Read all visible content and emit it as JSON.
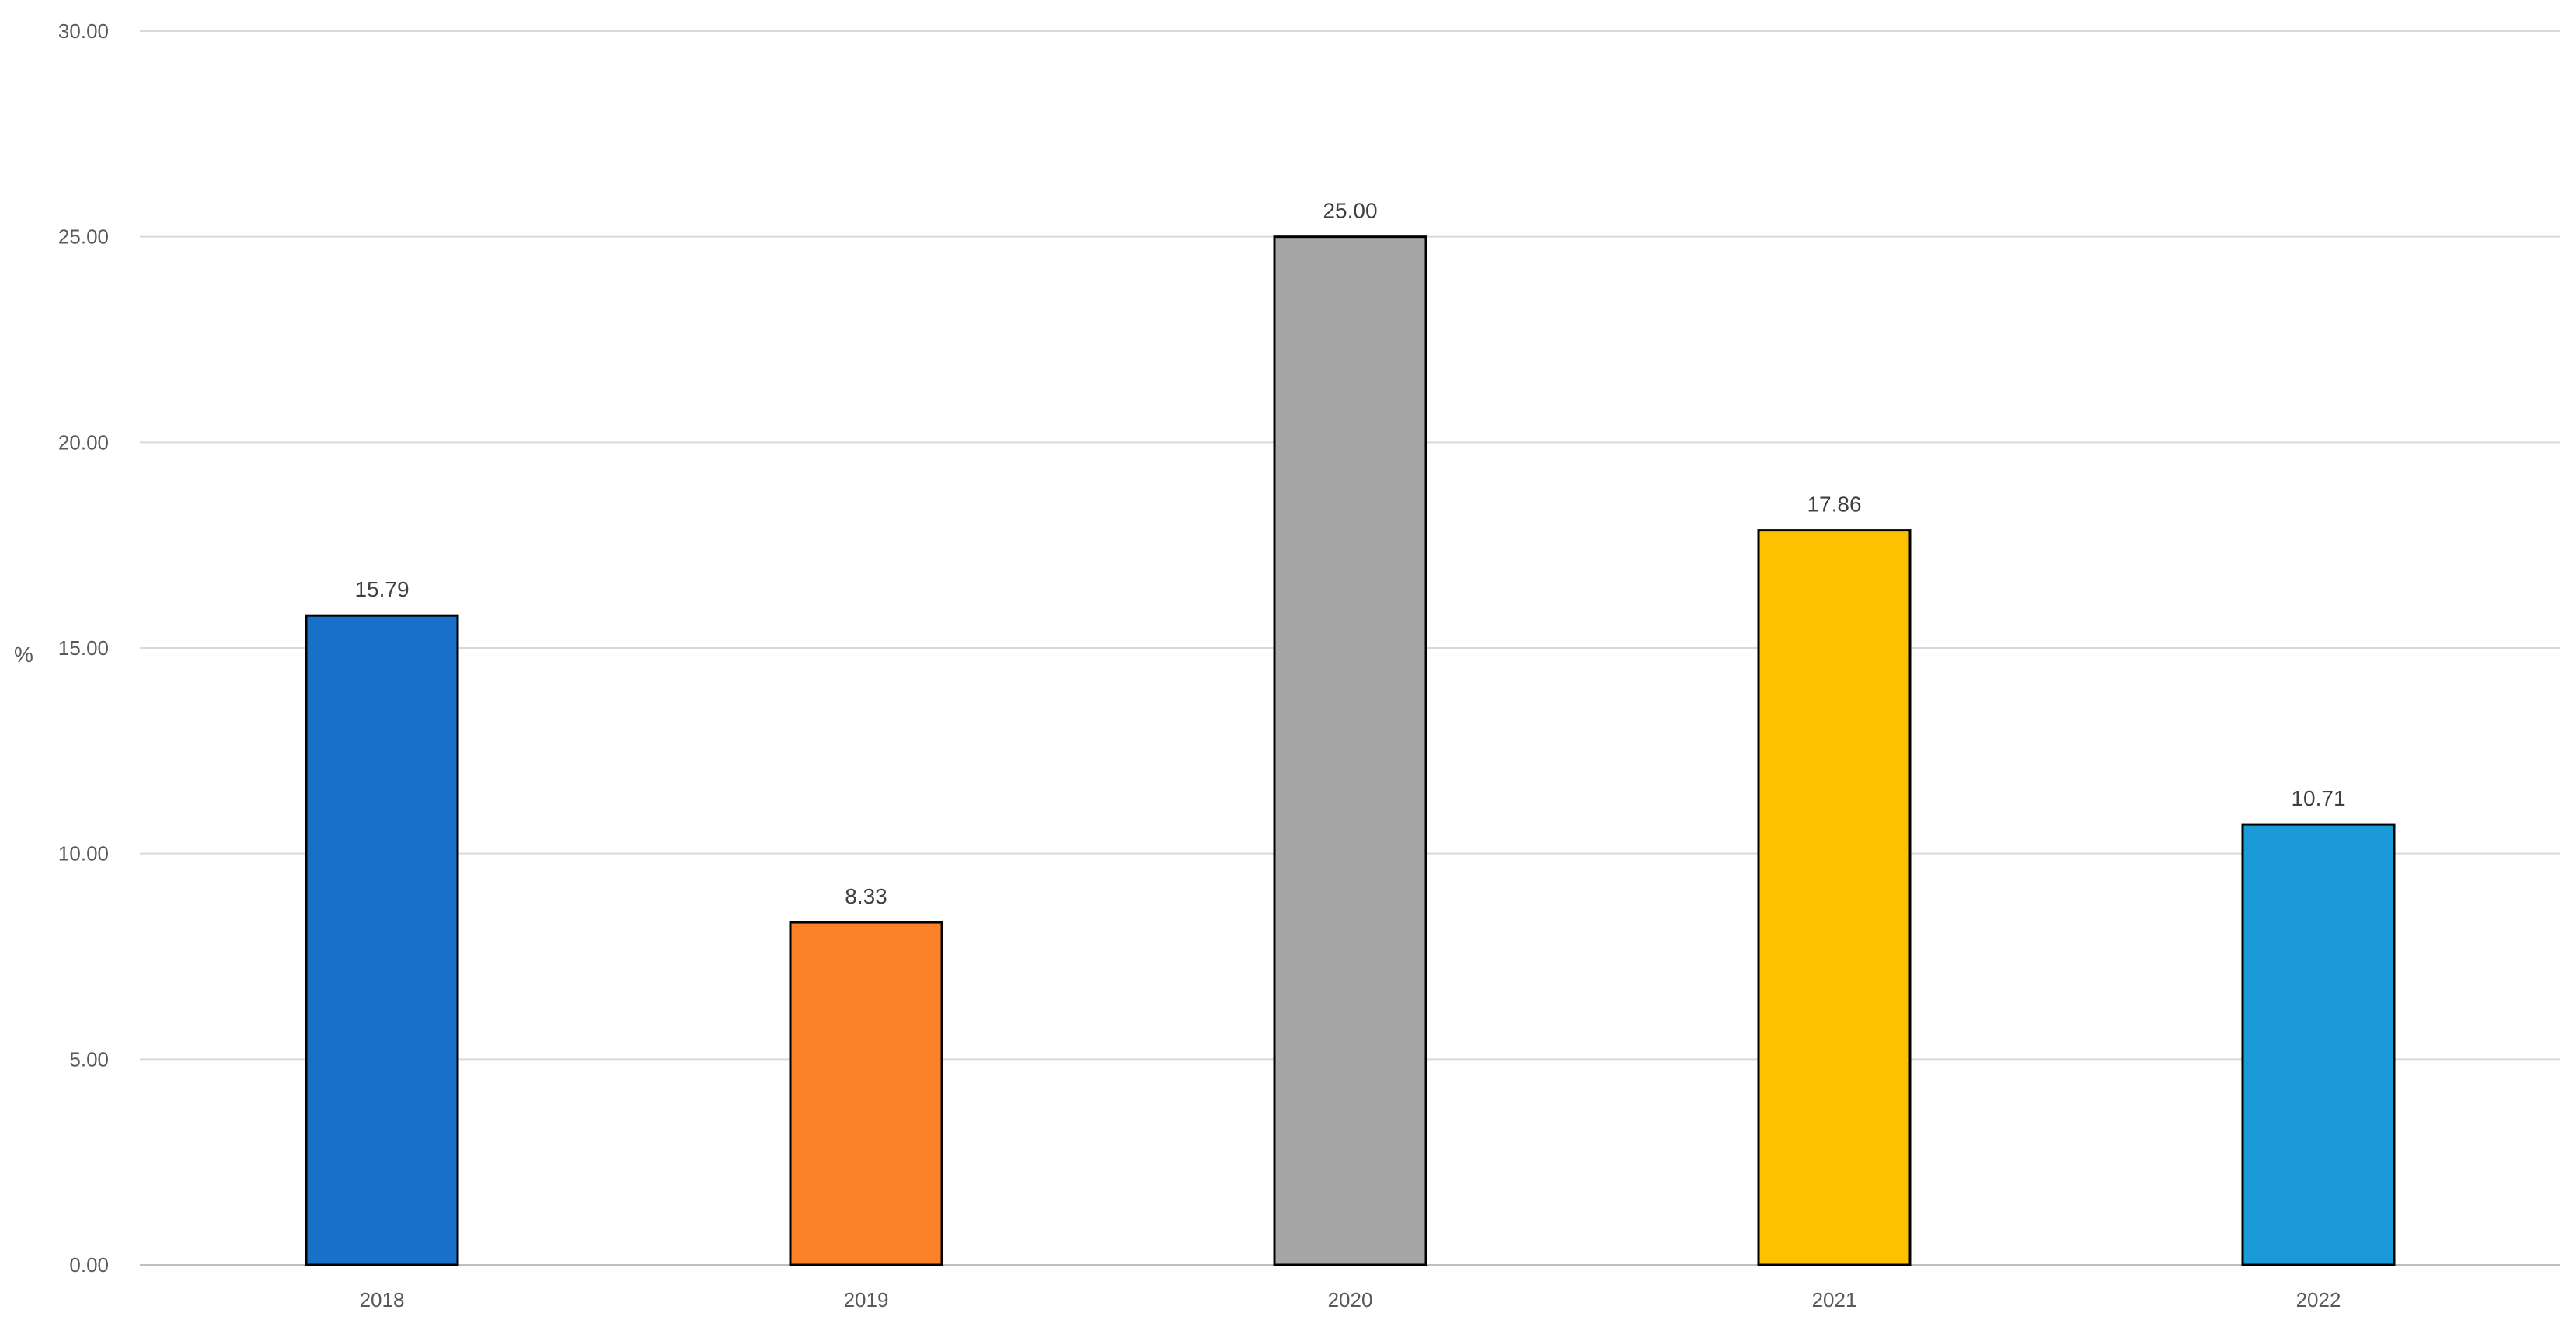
{
  "chart_data": {
    "type": "bar",
    "title": "",
    "xlabel": "",
    "ylabel": "%",
    "ylim": [
      0,
      30
    ],
    "y_ticks": [
      "0.00",
      "5.00",
      "10.00",
      "15.00",
      "20.00",
      "25.00",
      "30.00"
    ],
    "y_tick_values": [
      0,
      5,
      10,
      15,
      20,
      25,
      30
    ],
    "categories": [
      "2018",
      "2019",
      "2020",
      "2021",
      "2022"
    ],
    "values": [
      15.79,
      8.33,
      25.0,
      17.86,
      10.71
    ],
    "value_labels": [
      "15.79",
      "8.33",
      "25.00",
      "17.86",
      "10.71"
    ],
    "bar_colors": [
      "#1870C9",
      "#FD8128",
      "#A6A6A6",
      "#FEC100",
      "#1A9BD8"
    ],
    "grid": true,
    "legend": "none"
  }
}
